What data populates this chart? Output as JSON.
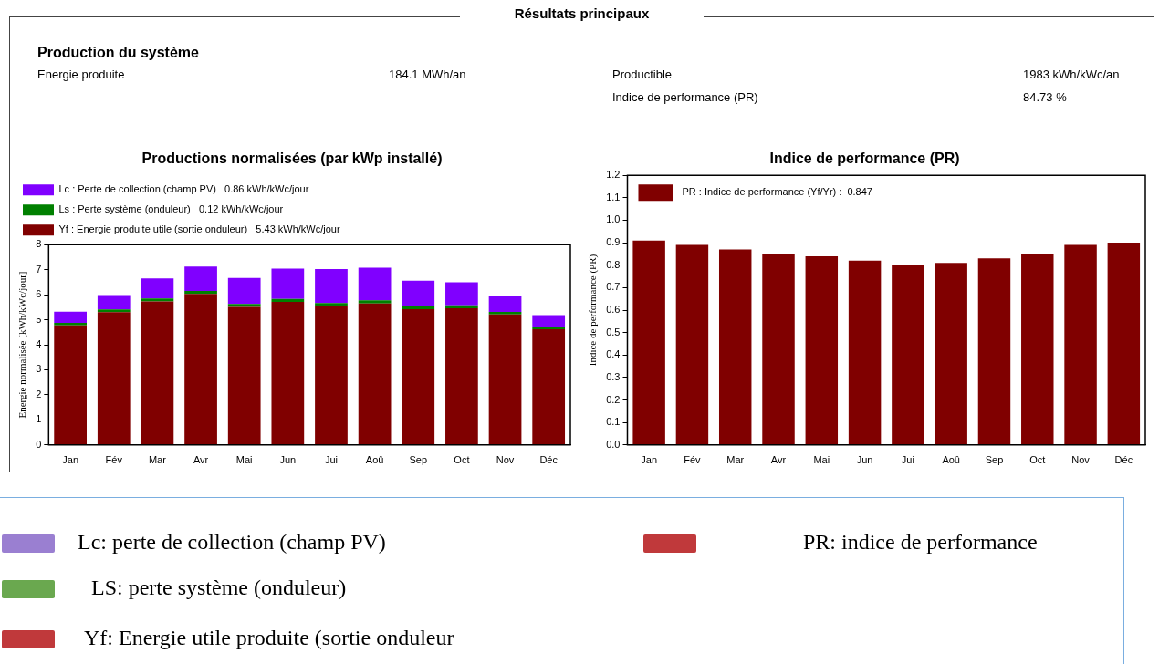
{
  "chart_data": [
    {
      "type": "other",
      "title": "Résultats principaux",
      "annotations": [
        "Production du système",
        "Energie produite",
        "184.1 MWh/an",
        "Productible",
        "1983 kWh/kWc/an",
        "Indice de performance (PR)",
        "84.73 %"
      ]
    },
    {
      "type": "bar",
      "title": "Productions normalisées (par kWp installé)",
      "ylabel": "Energie normalisée [kWh/kWc/jour]",
      "categories": [
        "Jan",
        "Fév",
        "Mar",
        "Avr",
        "Mai",
        "Jun",
        "Jui",
        "Aoû",
        "Sep",
        "Oct",
        "Nov",
        "Déc"
      ],
      "stacked": true,
      "series": [
        {
          "name": "Yf : Energie produite utile (sortie onduleur)   5.43 kWh/kWc/jour",
          "color": "#800000",
          "values": [
            4.77,
            5.3,
            5.73,
            6.03,
            5.51,
            5.71,
            5.57,
            5.65,
            5.42,
            5.46,
            5.21,
            4.62
          ]
        },
        {
          "name": "Ls : Perte système (onduleur)   0.12 kWh/kWc/jour",
          "color": "#008000",
          "values": [
            0.1,
            0.11,
            0.12,
            0.12,
            0.12,
            0.12,
            0.1,
            0.13,
            0.13,
            0.12,
            0.1,
            0.09
          ]
        },
        {
          "name": "Lc : Perte de collection (champ PV)   0.86 kWh/kWc/jour",
          "color": "#8000ff",
          "values": [
            0.45,
            0.58,
            0.8,
            0.97,
            1.04,
            1.21,
            1.35,
            1.3,
            1.01,
            0.92,
            0.62,
            0.47
          ]
        }
      ],
      "ylim": [
        0,
        8
      ],
      "yticks": [
        0,
        1,
        2,
        3,
        4,
        5,
        6,
        7,
        8
      ],
      "legend": "top"
    },
    {
      "type": "bar",
      "title": "Indice de performance (PR)",
      "ylabel": "Indice de performance (PR)",
      "categories": [
        "Jan",
        "Fév",
        "Mar",
        "Avr",
        "Mai",
        "Jun",
        "Jui",
        "Aoû",
        "Sep",
        "Oct",
        "Nov",
        "Déc"
      ],
      "series": [
        {
          "name": "PR : Indice de performance (Yf/Yr) :  0.847",
          "color": "#800000",
          "values": [
            0.91,
            0.89,
            0.87,
            0.85,
            0.84,
            0.82,
            0.8,
            0.81,
            0.83,
            0.85,
            0.89,
            0.9
          ]
        }
      ],
      "ylim": [
        0,
        1.2
      ],
      "yticks": [
        {
          "value": 0,
          "label": "0.0"
        },
        0.1,
        0.2,
        0.3,
        0.4,
        0.5,
        0.6,
        0.7,
        0.8,
        0.9,
        {
          "value": 1,
          "label": "1.0"
        },
        1.1,
        1.2
      ],
      "legend": "top left"
    },
    {
      "type": "other",
      "annotations": [
        "Lc: perte de collection (champ PV)",
        "LS: perte système (onduleur)",
        "Yf: Energie utile produite (sortie onduleur",
        "PR: indice de performance"
      ]
    }
  ]
}
